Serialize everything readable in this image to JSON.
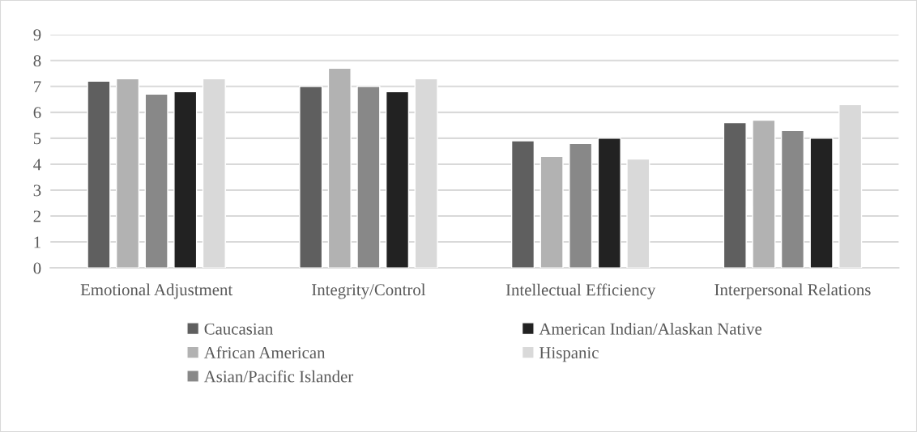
{
  "chart_data": {
    "type": "bar",
    "categories": [
      "Emotional Adjustment",
      "Integrity/Control",
      "Intellectual Efficiency",
      "Interpersonal Relations"
    ],
    "series": [
      {
        "name": "Caucasian",
        "color": "#5f5f5f",
        "values": [
          7.2,
          7.0,
          4.9,
          5.6
        ]
      },
      {
        "name": "African American",
        "color": "#b2b2b2",
        "values": [
          7.3,
          7.7,
          4.3,
          5.7
        ]
      },
      {
        "name": "Asian/Pacific Islander",
        "color": "#888888",
        "values": [
          6.7,
          7.0,
          4.8,
          5.3
        ]
      },
      {
        "name": "American Indian/Alaskan Native",
        "color": "#222222",
        "values": [
          6.8,
          6.8,
          5.0,
          5.0
        ]
      },
      {
        "name": "Hispanic",
        "color": "#d9d9d9",
        "values": [
          7.3,
          7.3,
          4.2,
          6.3
        ]
      }
    ],
    "ylim": [
      0,
      9
    ],
    "yticks": [
      0,
      1,
      2,
      3,
      4,
      5,
      6,
      7,
      8,
      9
    ],
    "grid": "y",
    "legend": "bottom"
  }
}
